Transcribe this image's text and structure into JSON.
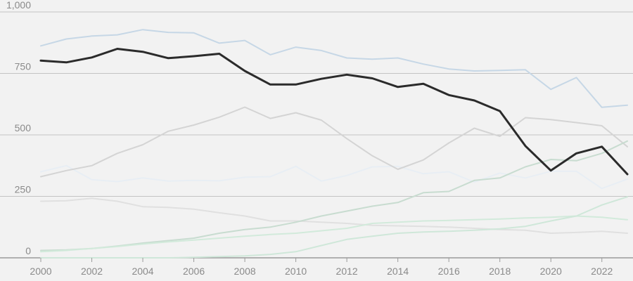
{
  "chart_data": {
    "type": "line",
    "title": "",
    "xlabel": "",
    "ylabel": "",
    "x": [
      2000,
      2001,
      2002,
      2003,
      2004,
      2005,
      2006,
      2007,
      2008,
      2009,
      2010,
      2011,
      2012,
      2013,
      2014,
      2015,
      2016,
      2017,
      2018,
      2019,
      2020,
      2021,
      2022,
      2023
    ],
    "xlim": [
      2000,
      2023
    ],
    "ylim": [
      0,
      1000
    ],
    "y_ticks": [
      {
        "value": 0,
        "label": "0"
      },
      {
        "value": 250,
        "label": "250"
      },
      {
        "value": 500,
        "label": "500"
      },
      {
        "value": 750,
        "label": "750"
      },
      {
        "value": 1000,
        "label": "1,000"
      }
    ],
    "x_ticks": [
      {
        "value": 2000,
        "label": "2000"
      },
      {
        "value": 2002,
        "label": "2002"
      },
      {
        "value": 2004,
        "label": "2004"
      },
      {
        "value": 2006,
        "label": "2006"
      },
      {
        "value": 2008,
        "label": "2008"
      },
      {
        "value": 2010,
        "label": "2010"
      },
      {
        "value": 2012,
        "label": "2012"
      },
      {
        "value": 2014,
        "label": "2014"
      },
      {
        "value": 2016,
        "label": "2016"
      },
      {
        "value": 2018,
        "label": "2018"
      },
      {
        "value": 2020,
        "label": "2020"
      },
      {
        "value": 2022,
        "label": "2022"
      }
    ],
    "grid": true,
    "legend": "none",
    "series": [
      {
        "color": "#c6d7e6",
        "width": 2,
        "highlight": false,
        "values": [
          862,
          890,
          902,
          907,
          928,
          917,
          915,
          873,
          884,
          826,
          857,
          843,
          813,
          808,
          813,
          788,
          768,
          760,
          762,
          765,
          685,
          733,
          612,
          621
        ]
      },
      {
        "color": "#e8eef4",
        "width": 2,
        "highlight": false,
        "values": [
          350,
          375,
          318,
          310,
          325,
          312,
          315,
          313,
          328,
          330,
          372,
          312,
          335,
          370,
          372,
          342,
          350,
          308,
          345,
          325,
          352,
          352,
          282,
          320
        ]
      },
      {
        "color": "#d4d4d4",
        "width": 2,
        "highlight": false,
        "values": [
          330,
          355,
          375,
          425,
          460,
          515,
          540,
          572,
          613,
          567,
          590,
          560,
          485,
          415,
          360,
          398,
          467,
          527,
          494,
          570,
          562,
          550,
          537,
          452
        ]
      },
      {
        "color": "#e0e0e0",
        "width": 2,
        "highlight": false,
        "values": [
          230,
          232,
          242,
          230,
          208,
          205,
          198,
          183,
          170,
          150,
          150,
          145,
          140,
          132,
          130,
          128,
          125,
          120,
          115,
          112,
          100,
          103,
          108,
          100
        ]
      },
      {
        "color": "#c8dcd0",
        "width": 2,
        "highlight": false,
        "values": [
          30,
          32,
          38,
          48,
          60,
          70,
          80,
          100,
          115,
          125,
          145,
          170,
          190,
          210,
          225,
          265,
          270,
          315,
          325,
          370,
          400,
          395,
          425,
          475
        ]
      },
      {
        "color": "#d2eadb",
        "width": 2,
        "highlight": false,
        "values": [
          25,
          30,
          38,
          46,
          56,
          65,
          72,
          80,
          88,
          95,
          100,
          110,
          120,
          140,
          145,
          150,
          152,
          155,
          158,
          162,
          165,
          170,
          165,
          155
        ]
      },
      {
        "color": "#cfe7d9",
        "width": 2,
        "highlight": false,
        "values": [
          0,
          0,
          0,
          0,
          0,
          0,
          2,
          5,
          8,
          14,
          25,
          50,
          75,
          88,
          100,
          105,
          108,
          112,
          118,
          128,
          150,
          170,
          215,
          248
        ]
      },
      {
        "color": "#2b2b2b",
        "width": 3,
        "highlight": true,
        "values": [
          802,
          795,
          815,
          850,
          838,
          812,
          820,
          830,
          760,
          705,
          705,
          728,
          745,
          730,
          695,
          708,
          662,
          640,
          597,
          455,
          355,
          425,
          452,
          340
        ]
      }
    ]
  }
}
